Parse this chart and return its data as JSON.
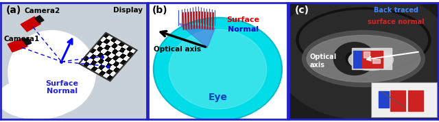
{
  "fig_width": 6.4,
  "fig_height": 1.78,
  "dpi": 100,
  "border_color": "#2222cc",
  "border_lw": 2.0,
  "panel_labels": [
    "(a)",
    "(b)",
    "(c)"
  ],
  "panel_label_fontsize": 10,
  "panel_a": {
    "bg_color": "#c8d0d8",
    "label_camera2": "Camera2",
    "label_camera1": "Camera1",
    "label_display": "Display",
    "label_surface_normal": "Surface\nNormal",
    "text_color_blue": "#2222dd"
  },
  "panel_b": {
    "eye_color_inner": "#aaf0f0",
    "eye_color_outer": "#00e0e8",
    "eye_edge_color": "#00cccc",
    "label_eye": "Eye",
    "label_optical_axis": "Optical axis",
    "label_surface_normal_red": "Surface",
    "label_surface_normal_blue": "Normal",
    "text_color_red": "#dd0000",
    "text_color_blue": "#0000cc",
    "text_color_black": "black"
  },
  "panel_c": {
    "label_back_traced_blue": "Back traced",
    "label_back_traced_red": "surface normal",
    "label_optical_axis": "Optical\naxis",
    "text_color_blue": "#4488ff",
    "text_color_red": "#dd2222",
    "text_color_white": "white"
  }
}
